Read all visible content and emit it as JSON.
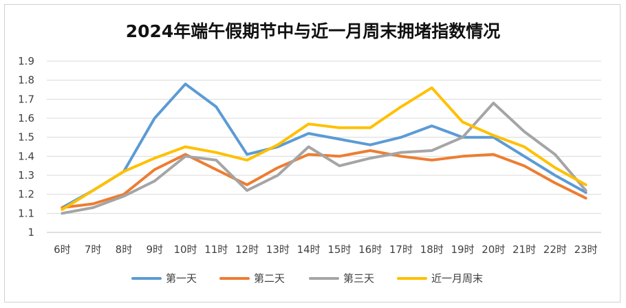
{
  "chart_data": {
    "type": "line",
    "title": "2024年端午假期节中与近一月周末拥堵指数情况",
    "xlabel": "",
    "ylabel": "",
    "categories": [
      "6时",
      "7时",
      "8时",
      "9时",
      "10时",
      "11时",
      "12时",
      "13时",
      "14时",
      "15时",
      "16时",
      "17时",
      "18时",
      "19时",
      "20时",
      "21时",
      "22时",
      "23时"
    ],
    "ylim": [
      1,
      1.9
    ],
    "yticks": [
      "1",
      "1.1",
      "1.2",
      "1.3",
      "1.4",
      "1.5",
      "1.6",
      "1.7",
      "1.8",
      "1.9"
    ],
    "grid": true,
    "legend_position": "bottom",
    "series": [
      {
        "name": "第一天",
        "color": "#5b9bd5",
        "values": [
          1.13,
          1.22,
          1.32,
          1.6,
          1.78,
          1.66,
          1.41,
          1.45,
          1.52,
          1.49,
          1.46,
          1.5,
          1.56,
          1.5,
          1.5,
          1.4,
          1.3,
          1.21
        ]
      },
      {
        "name": "第二天",
        "color": "#ed7d31",
        "values": [
          1.13,
          1.15,
          1.2,
          1.33,
          1.41,
          1.33,
          1.25,
          1.34,
          1.41,
          1.4,
          1.43,
          1.4,
          1.38,
          1.4,
          1.41,
          1.35,
          1.26,
          1.18
        ]
      },
      {
        "name": "第三天",
        "color": "#a5a5a5",
        "values": [
          1.1,
          1.13,
          1.19,
          1.27,
          1.4,
          1.38,
          1.22,
          1.3,
          1.45,
          1.35,
          1.39,
          1.42,
          1.43,
          1.5,
          1.68,
          1.53,
          1.41,
          1.22
        ]
      },
      {
        "name": "近一月周末",
        "color": "#ffc000",
        "values": [
          1.12,
          1.22,
          1.32,
          1.39,
          1.45,
          1.42,
          1.38,
          1.46,
          1.57,
          1.55,
          1.55,
          1.66,
          1.76,
          1.58,
          1.51,
          1.45,
          1.34,
          1.25
        ]
      }
    ]
  }
}
